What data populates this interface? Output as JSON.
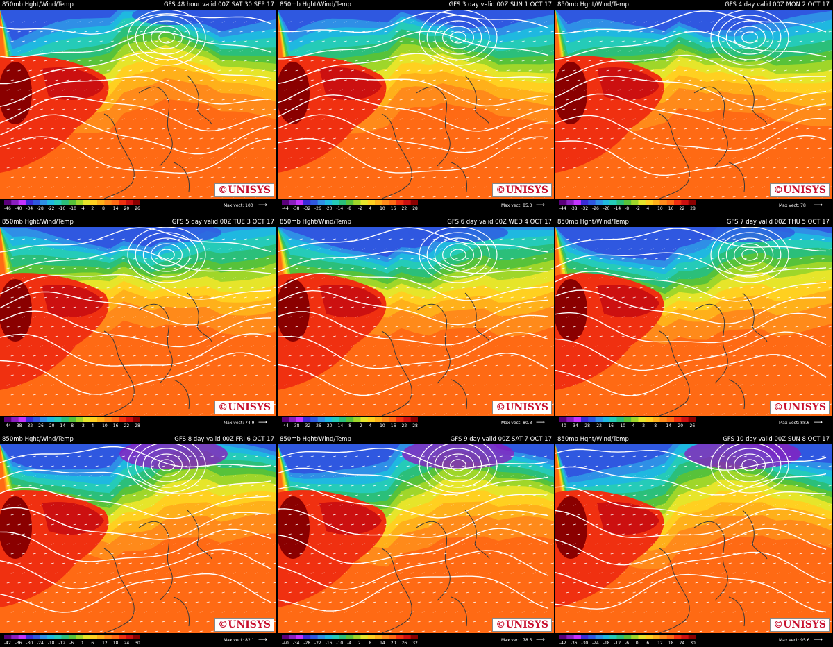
{
  "palette": [
    "#5a007a",
    "#8a1fbf",
    "#c433ff",
    "#3a2bd6",
    "#2f58e0",
    "#2f8fe6",
    "#1fb8e0",
    "#25cbb8",
    "#2bbf7a",
    "#57c23a",
    "#9fd62a",
    "#e6e52a",
    "#ffd020",
    "#ffb01a",
    "#ff8a1a",
    "#ff6a14",
    "#f03010",
    "#cc1010",
    "#8a0000"
  ],
  "logo_text": "©UNISYS",
  "panels": [
    {
      "title_left": "850mb Hght/Wind/Temp",
      "title_right": "GFS 48 hour valid 00Z SAT 30 SEP 17",
      "legend_ticks": [
        "-46",
        "-40",
        "-34",
        "-28",
        "-22",
        "-16",
        "-10",
        "-4",
        "2",
        "8",
        "14",
        "20",
        "26"
      ],
      "max_vector": "Max vect: 100"
    },
    {
      "title_left": "850mb Hght/Wind/Temp",
      "title_right": "GFS 3 day valid 00Z SUN  1 OCT 17",
      "legend_ticks": [
        "-44",
        "-38",
        "-32",
        "-26",
        "-20",
        "-14",
        "-8",
        "-2",
        "4",
        "10",
        "16",
        "22",
        "28"
      ],
      "max_vector": "Max vect: 85.3"
    },
    {
      "title_left": "850mb Hght/Wind/Temp",
      "title_right": "GFS 4 day valid 00Z MON  2 OCT 17",
      "legend_ticks": [
        "-44",
        "-38",
        "-32",
        "-26",
        "-20",
        "-14",
        "-8",
        "-2",
        "4",
        "10",
        "16",
        "22",
        "28"
      ],
      "max_vector": "Max vect: 78"
    },
    {
      "title_left": "850mb Hght/Wind/Temp",
      "title_right": "GFS 5 day valid 00Z TUE  3 OCT 17",
      "legend_ticks": [
        "-44",
        "-38",
        "-32",
        "-26",
        "-20",
        "-14",
        "-8",
        "-2",
        "4",
        "10",
        "16",
        "22",
        "28"
      ],
      "max_vector": "Max vect: 74.9"
    },
    {
      "title_left": "850mb Hght/Wind/Temp",
      "title_right": "GFS 6 day valid 00Z WED  4 OCT 17",
      "legend_ticks": [
        "-44",
        "-38",
        "-32",
        "-26",
        "-20",
        "-14",
        "-8",
        "-2",
        "4",
        "10",
        "16",
        "22",
        "28"
      ],
      "max_vector": "Max vect: 80.3"
    },
    {
      "title_left": "850mb Hght/Wind/Temp",
      "title_right": "GFS 7 day valid 00Z THU  5 OCT 17",
      "legend_ticks": [
        "-40",
        "-34",
        "-28",
        "-22",
        "-16",
        "-10",
        "-4",
        "2",
        "8",
        "14",
        "20",
        "26"
      ],
      "max_vector": "Max vect: 88.6"
    },
    {
      "title_left": "850mb Hght/Wind/Temp",
      "title_right": "GFS 8 day valid 00Z FRI  6 OCT 17",
      "legend_ticks": [
        "-42",
        "-36",
        "-30",
        "-24",
        "-18",
        "-12",
        "-6",
        "0",
        "6",
        "12",
        "18",
        "24",
        "30"
      ],
      "max_vector": "Max vect: 82.1"
    },
    {
      "title_left": "850mb Hght/Wind/Temp",
      "title_right": "GFS 9 day valid 00Z SAT  7 OCT 17",
      "legend_ticks": [
        "-40",
        "-34",
        "-28",
        "-22",
        "-16",
        "-10",
        "-4",
        "2",
        "8",
        "14",
        "20",
        "26",
        "32"
      ],
      "max_vector": "Max vect: 78.5"
    },
    {
      "title_left": "850mb Hght/Wind/Temp",
      "title_right": "GFS 10 day valid 00Z SUN  8 OCT 17",
      "legend_ticks": [
        "-42",
        "-36",
        "-30",
        "-24",
        "-18",
        "-12",
        "-6",
        "0",
        "6",
        "12",
        "18",
        "24",
        "30"
      ],
      "max_vector": "Max vect: 95.6"
    }
  ]
}
